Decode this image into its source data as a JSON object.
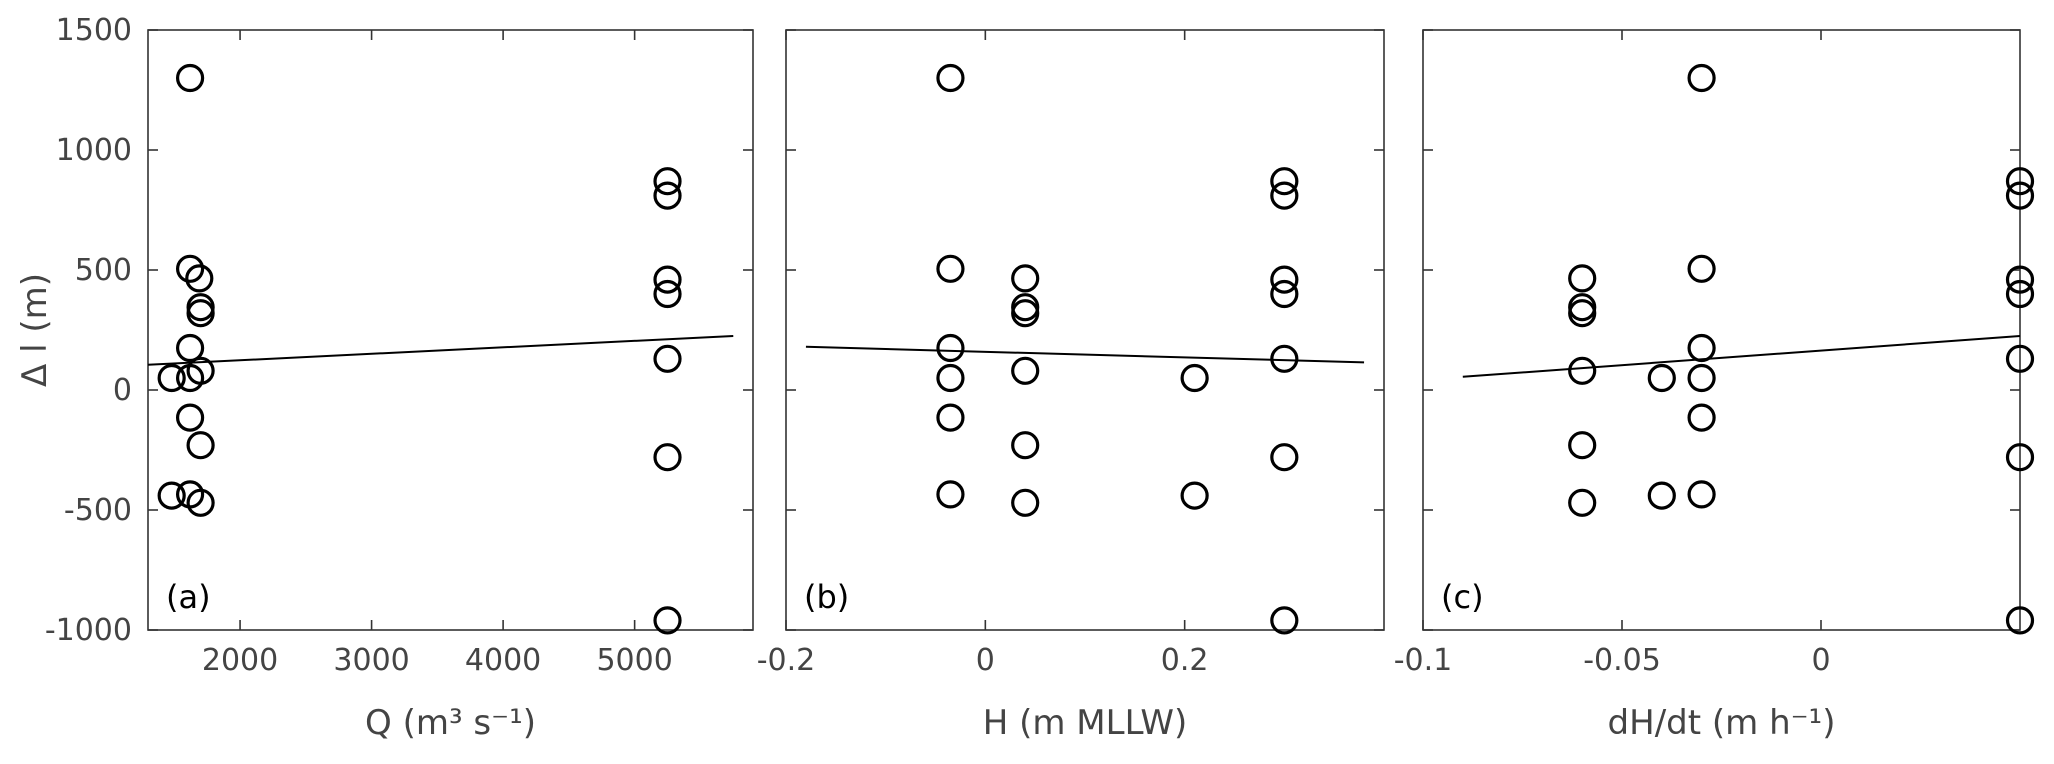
{
  "chart_data": [
    {
      "type": "scatter",
      "panel_label": "(a)",
      "xlabel": "Q (m³ s⁻¹)",
      "ylabel": "Δ l (m)",
      "xlim": [
        1300,
        5900
      ],
      "ylim": [
        -1000,
        1500
      ],
      "xticks": [
        2000,
        3000,
        4000,
        5000
      ],
      "xtick_labels": [
        "2000",
        "3000",
        "4000",
        "5000"
      ],
      "yticks": [
        -1000,
        -500,
        0,
        500,
        1000,
        1500
      ],
      "ytick_labels": [
        "-1000",
        "-500",
        "0",
        "500",
        "1000",
        "1500"
      ],
      "points": {
        "x": [
          1620,
          1620,
          1690,
          1700,
          1700,
          1620,
          1480,
          1620,
          1700,
          1620,
          1700,
          1480,
          1620,
          1700,
          5250,
          5250,
          5250,
          5250,
          5250,
          5250,
          5250
        ],
        "y": [
          1300,
          505,
          465,
          345,
          320,
          175,
          50,
          50,
          80,
          -115,
          -230,
          -440,
          -435,
          -470,
          870,
          810,
          460,
          400,
          130,
          -280,
          -960
        ]
      },
      "fit_line": {
        "x": [
          1300,
          5750
        ],
        "y": [
          105,
          225
        ]
      },
      "grid": false
    },
    {
      "type": "scatter",
      "panel_label": "(b)",
      "xlabel": "H (m MLLW)",
      "ylabel": "",
      "xlim": [
        -0.2,
        0.4
      ],
      "ylim": [
        -1000,
        1500
      ],
      "xticks": [
        -0.2,
        0,
        0.2
      ],
      "xtick_labels": [
        "-0.2",
        "0",
        "0.2"
      ],
      "yticks": [
        -1000,
        -500,
        0,
        500,
        1000,
        1500
      ],
      "ytick_labels": [],
      "points": {
        "x": [
          -0.035,
          -0.035,
          -0.035,
          -0.035,
          -0.035,
          -0.035,
          0.04,
          0.04,
          0.04,
          0.04,
          0.04,
          0.04,
          0.21,
          0.21,
          0.3,
          0.3,
          0.3,
          0.3,
          0.3,
          0.3,
          0.3
        ],
        "y": [
          1300,
          505,
          175,
          50,
          -115,
          -435,
          465,
          345,
          320,
          80,
          -230,
          -470,
          50,
          -440,
          870,
          810,
          460,
          400,
          130,
          -280,
          -960
        ]
      },
      "fit_line": {
        "x": [
          -0.18,
          0.38
        ],
        "y": [
          180,
          115
        ]
      },
      "grid": false
    },
    {
      "type": "scatter",
      "panel_label": "(c)",
      "xlabel": "dH/dt (m h⁻¹)",
      "ylabel": "",
      "xlim": [
        -0.1,
        0.05
      ],
      "ylim": [
        -1000,
        1500
      ],
      "xticks": [
        -0.1,
        -0.05,
        0
      ],
      "xtick_labels": [
        "-0.1",
        "-0.05",
        "0"
      ],
      "yticks": [
        -1000,
        -500,
        0,
        500,
        1000,
        1500
      ],
      "ytick_labels": [],
      "points": {
        "x": [
          -0.06,
          -0.06,
          -0.06,
          -0.06,
          -0.06,
          -0.06,
          -0.04,
          -0.04,
          -0.03,
          -0.03,
          -0.03,
          -0.03,
          -0.03,
          -0.03,
          0.05,
          0.05,
          0.05,
          0.05,
          0.05,
          0.05,
          0.05
        ],
        "y": [
          465,
          345,
          320,
          80,
          -230,
          -470,
          50,
          -440,
          1300,
          505,
          175,
          50,
          -115,
          -435,
          870,
          810,
          460,
          400,
          130,
          -280,
          -960
        ]
      },
      "fit_line": {
        "x": [
          -0.09,
          0.05
        ],
        "y": [
          55,
          225
        ]
      },
      "grid": false
    }
  ]
}
